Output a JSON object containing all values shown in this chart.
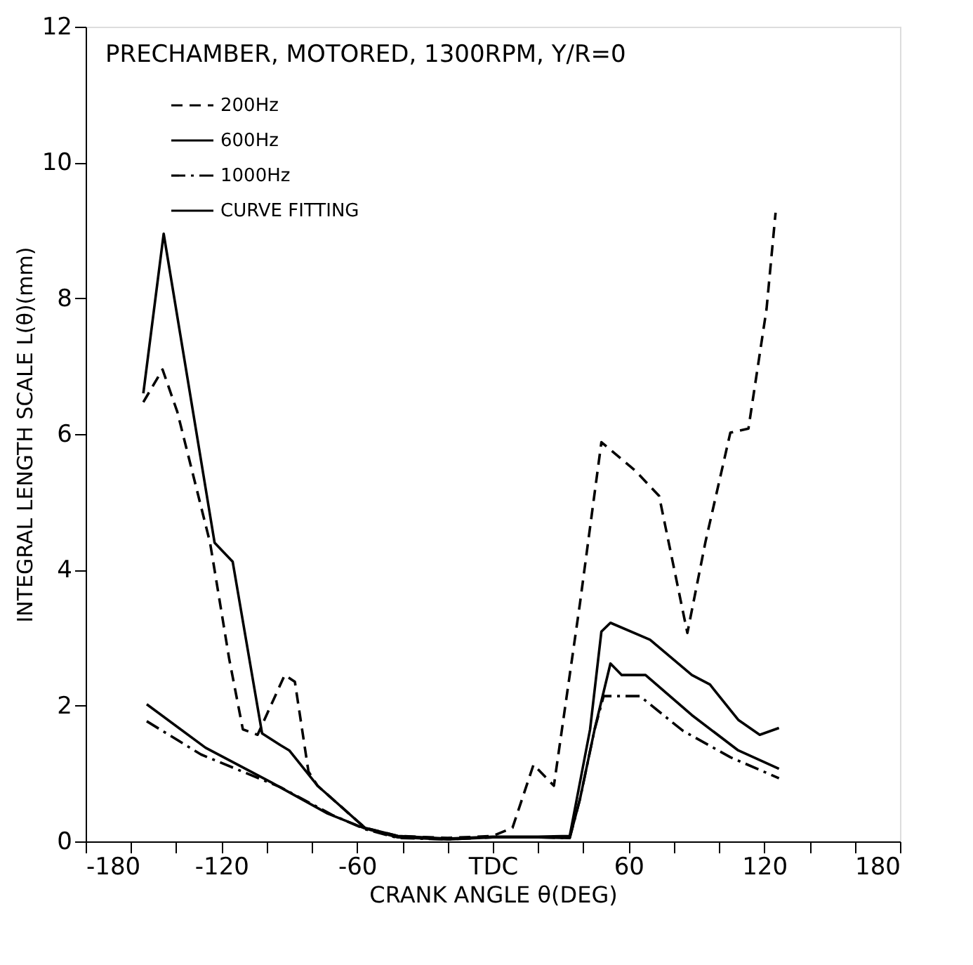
{
  "chart_data": {
    "type": "line",
    "title": "PRECHAMBER, MOTORED, 1300RPM, Y/R=0",
    "xlabel": "CRANK ANGLE  θ(DEG)",
    "ylabel": "INTEGRAL LENGTH SCALE L(θ)(mm)",
    "xlim": [
      -180,
      180
    ],
    "ylim": [
      0,
      12
    ],
    "xticks": [
      -180,
      {
        "value": -160,
        "label": null
      },
      {
        "value": -140,
        "label": null
      },
      -120,
      {
        "value": -100,
        "label": null
      },
      {
        "value": -80,
        "label": null
      },
      -60,
      {
        "value": -40,
        "label": null
      },
      {
        "value": -20,
        "label": null
      },
      {
        "value": 0,
        "label": "TDC"
      },
      {
        "value": 20,
        "label": null
      },
      {
        "value": 40,
        "label": null
      },
      60,
      {
        "value": 80,
        "label": null
      },
      {
        "value": 100,
        "label": null
      },
      120,
      {
        "value": 140,
        "label": null
      },
      {
        "value": 160,
        "label": null
      },
      180
    ],
    "yticks": [
      0,
      2,
      4,
      6,
      8,
      10,
      12
    ],
    "grid": false,
    "legend": "top left",
    "marker": "none",
    "series": [
      {
        "name": "200Hz",
        "color": "#000000",
        "line_style": "dashed",
        "x": [
          -154.5,
          -146,
          -139.5,
          -125,
          -116.5,
          -110.5,
          -104,
          -92,
          -87.5,
          -81.5,
          -77.5,
          -56.5,
          -42,
          -20,
          0,
          8.7,
          18,
          27,
          38.5,
          48,
          63,
          73.5,
          86,
          94,
          105,
          113,
          121,
          125
        ],
        "values": [
          6.47,
          6.95,
          6.33,
          4.4,
          2.68,
          1.65,
          1.57,
          2.45,
          2.35,
          1.03,
          0.82,
          0.2,
          0.08,
          0.05,
          0.08,
          0.2,
          1.13,
          0.82,
          3.5,
          5.88,
          5.46,
          5.09,
          3.07,
          4.41,
          6.02,
          6.08,
          7.84,
          9.26
        ]
      },
      {
        "name": "600Hz",
        "color": "#000000",
        "line_style": "solid",
        "x": [
          -153,
          -127,
          -98,
          -73,
          -56.5,
          -42,
          -20,
          0,
          20,
          34,
          38.5,
          45,
          52,
          57,
          67.5,
          88,
          108.5,
          126.5
        ],
        "values": [
          2.02,
          1.38,
          0.87,
          0.41,
          0.19,
          0.06,
          0.03,
          0.06,
          0.06,
          0.05,
          0.62,
          1.65,
          2.62,
          2.45,
          2.45,
          1.86,
          1.34,
          1.07
        ]
      },
      {
        "name": "1000Hz",
        "color": "#000000",
        "line_style": "dashdot",
        "x": [
          -153,
          -129,
          -94,
          -71,
          -56.5,
          -42,
          -20,
          0,
          20,
          34,
          38.5,
          45,
          49,
          65,
          84,
          105,
          126.5
        ],
        "values": [
          1.77,
          1.28,
          0.8,
          0.39,
          0.18,
          0.05,
          0.03,
          0.06,
          0.06,
          0.05,
          0.62,
          1.65,
          2.14,
          2.14,
          1.63,
          1.24,
          0.93
        ]
      },
      {
        "name": "CURVE FITTING",
        "color": "#000000",
        "line_style": "solid",
        "x": [
          -154.5,
          -145.5,
          -123,
          -115,
          -102,
          -94,
          -90,
          -77.5,
          -56.5,
          -42,
          -20,
          0,
          20,
          34,
          43,
          48,
          52,
          69.5,
          88,
          96,
          108.5,
          118,
          126.5
        ],
        "values": [
          6.6,
          8.95,
          4.4,
          4.12,
          1.59,
          1.42,
          1.34,
          0.82,
          0.2,
          0.08,
          0.04,
          0.07,
          0.07,
          0.08,
          1.65,
          3.09,
          3.22,
          2.97,
          2.45,
          2.31,
          1.79,
          1.57,
          1.67
        ]
      }
    ]
  }
}
